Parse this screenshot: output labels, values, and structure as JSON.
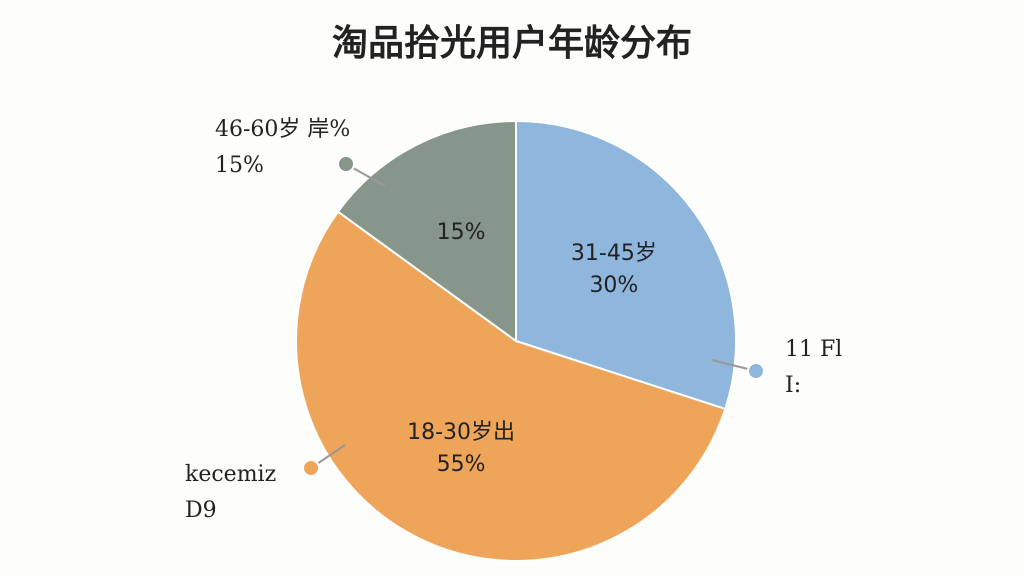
{
  "chart_data": {
    "type": "pie",
    "title": "淘品拾光用户年龄分布",
    "categories": [
      "31-45岁",
      "18-30岁出",
      null
    ],
    "values": [
      30,
      55,
      15
    ],
    "value_labels": [
      "30%",
      "55%",
      "15%"
    ],
    "colors": [
      "#8fb6dc",
      "#eea55a",
      "#87968a"
    ],
    "callouts": [
      {
        "lines": [
          "11 Fl",
          "I:"
        ]
      },
      {
        "lines": [
          "kecemiz",
          "D9"
        ]
      },
      {
        "lines": [
          "46-60岁 岸%",
          "15%"
        ]
      }
    ]
  }
}
